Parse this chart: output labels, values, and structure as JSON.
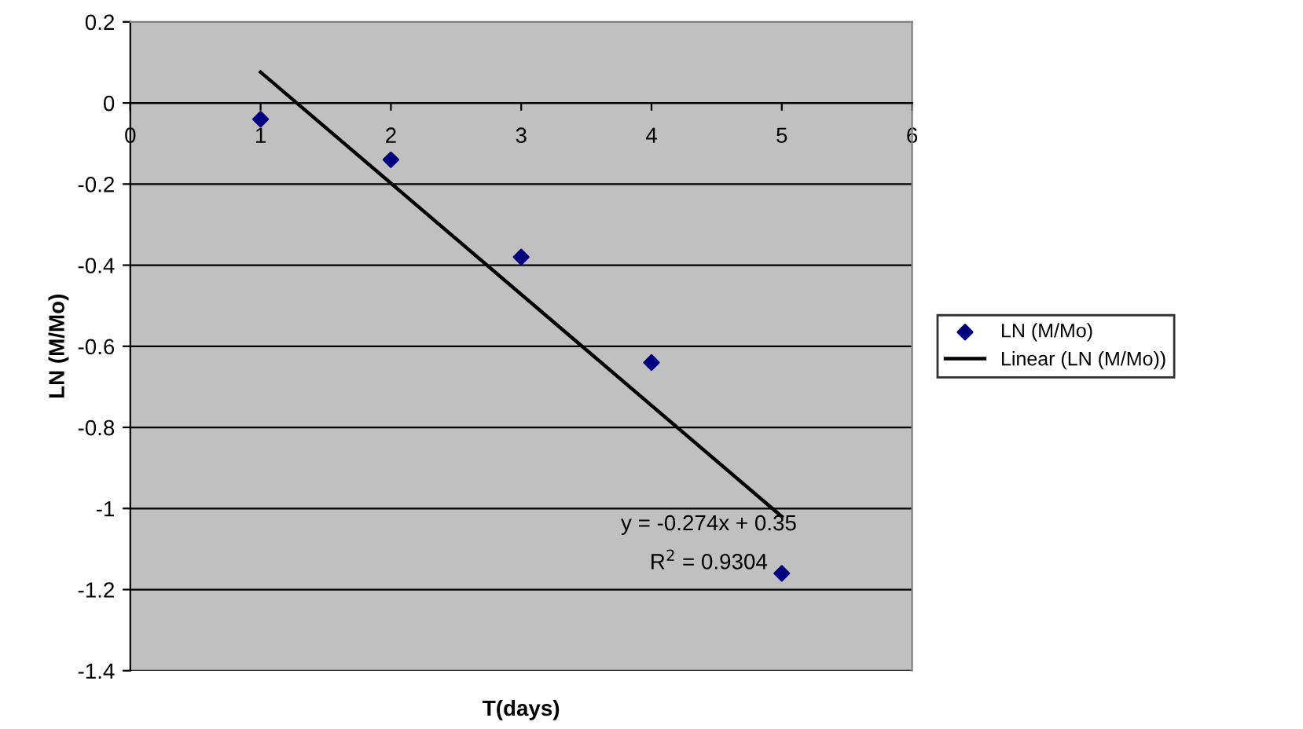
{
  "chart_data": {
    "type": "scatter",
    "xlabel": "T(days)",
    "ylabel": "LN (M/Mo)",
    "series": [
      {
        "name": "LN (M/Mo)",
        "marker": "diamond",
        "color": "#000080",
        "x": [
          1,
          2,
          3,
          4,
          5
        ],
        "values": [
          -0.04,
          -0.14,
          -0.38,
          -0.64,
          -1.16
        ]
      },
      {
        "name": "Linear (LN (M/Mo))",
        "type": "line",
        "marker": "none",
        "color": "#000000",
        "x": [
          1,
          5
        ],
        "values": [
          0.076,
          -1.02
        ]
      }
    ],
    "annotations": [
      "y = -0.274x + 0.35",
      "R$^{2}$ = 0.9304"
    ],
    "xlim": [
      0,
      6
    ],
    "xticks": [
      0,
      1,
      2,
      3,
      4,
      5,
      6
    ],
    "ylim": [
      -1.4,
      0.2
    ],
    "yticks": [
      -1.4,
      -1.2,
      -1,
      -0.8,
      -0.6,
      -0.4,
      -0.2,
      0,
      0.2
    ],
    "grid": "y",
    "legend": "right"
  }
}
